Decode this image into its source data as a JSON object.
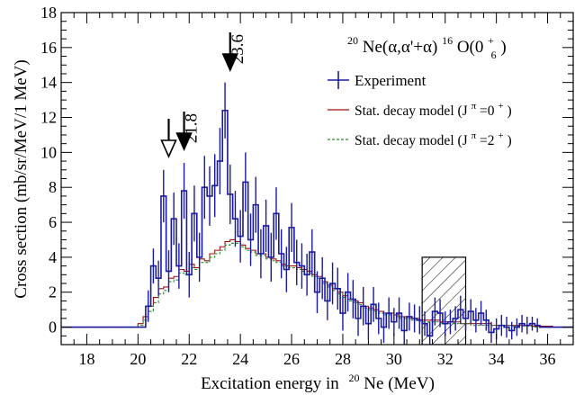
{
  "chart_data": {
    "type": "step",
    "title": "²⁰Ne(α,α'+α)¹⁶O(0⁺₆)",
    "title_parts": {
      "mass_ne": "20",
      "reaction": "Ne(α,α'+α)",
      "mass_o": "16",
      "product": "O(0",
      "sub": "6",
      "sup": "+",
      "close": ")"
    },
    "xlabel": {
      "prefix": "Excitation energy in",
      "mass": "20",
      "suffix": "Ne (MeV)"
    },
    "ylabel": "Cross section (mb/sr/MeV/1 MeV)",
    "xlim": [
      17,
      37
    ],
    "ylim": [
      -1,
      18
    ],
    "xticks": [
      18,
      20,
      22,
      24,
      26,
      28,
      30,
      32,
      34,
      36
    ],
    "yticks": [
      0,
      2,
      4,
      6,
      8,
      10,
      12,
      14,
      16,
      18
    ],
    "grid": false,
    "legend_position": "top-right",
    "legend": [
      {
        "label": "Experiment",
        "style": "errorbar",
        "color": "#1a1aa0"
      },
      {
        "label": "Stat. decay model (J",
        "sup": "π",
        "tail": "=0",
        "tail_sup": "+",
        "end": ")",
        "style": "solid",
        "color": "#a01010"
      },
      {
        "label": "Stat. decay model (J",
        "sup": "π",
        "tail": "=2",
        "tail_sup": "+",
        "end": ")",
        "style": "dashed",
        "color": "#2a8a2a"
      }
    ],
    "annotations": [
      {
        "text": "23.6",
        "x": 23.6,
        "arrow": "filled"
      },
      {
        "text": "21.8",
        "x": 21.8,
        "arrow": "filled"
      },
      {
        "text": "",
        "x": 21.2,
        "arrow": "open"
      }
    ],
    "excluded_region": {
      "x": [
        31.1,
        32.8
      ],
      "y": [
        -1,
        4
      ]
    },
    "series": [
      {
        "name": "Experiment",
        "color": "#1a1aa0",
        "bin_width": 0.2,
        "x": [
          20.4,
          20.6,
          20.8,
          21.0,
          21.2,
          21.4,
          21.6,
          21.8,
          22.0,
          22.2,
          22.4,
          22.6,
          22.8,
          23.0,
          23.2,
          23.4,
          23.6,
          23.8,
          24.0,
          24.2,
          24.4,
          24.6,
          24.8,
          25.0,
          25.2,
          25.4,
          25.6,
          25.8,
          26.0,
          26.2,
          26.4,
          26.6,
          26.8,
          27.0,
          27.2,
          27.4,
          27.6,
          27.8,
          28.0,
          28.2,
          28.4,
          28.6,
          28.8,
          29.0,
          29.2,
          29.4,
          29.6,
          29.8,
          30.0,
          30.2,
          30.4,
          30.6,
          30.8,
          31.0,
          31.2,
          31.4,
          31.6,
          31.8,
          32.0,
          32.2,
          32.4,
          32.6,
          32.8,
          33.0,
          33.2,
          33.4,
          33.6,
          33.8,
          34.0,
          34.2,
          34.4,
          34.6,
          34.8,
          35.0,
          35.2,
          35.4,
          35.6
        ],
        "y": [
          1.2,
          3.5,
          2.8,
          7.5,
          3.2,
          6.2,
          3.5,
          7.8,
          3.0,
          6.5,
          4.0,
          8.0,
          7.5,
          8.1,
          9.5,
          12.4,
          7.6,
          6.2,
          5.2,
          8.3,
          5.0,
          7.0,
          4.2,
          5.8,
          4.0,
          6.5,
          4.2,
          3.3,
          5.7,
          3.7,
          3.5,
          3.0,
          4.3,
          2.0,
          2.8,
          1.5,
          2.5,
          2.2,
          0.8,
          2.0,
          1.6,
          0.5,
          1.2,
          0.2,
          1.3,
          0.5,
          0.0,
          0.8,
          0.3,
          0.8,
          -0.2,
          0.6,
          0.5,
          0.4,
          0.2,
          -0.5,
          0.9,
          0.8,
          0.2,
          0.3,
          0.5,
          1.0,
          0.5,
          0.9,
          0.4,
          0.8,
          0.4,
          -0.3,
          -0.1,
          0.1,
          0.0,
          -0.2,
          0.0,
          0.2,
          0.1,
          0.2,
          0.1
        ],
        "err": [
          0.9,
          1.0,
          1.0,
          1.5,
          1.2,
          1.5,
          1.3,
          1.6,
          1.3,
          1.6,
          1.4,
          1.8,
          1.7,
          1.8,
          1.9,
          1.6,
          1.7,
          1.6,
          1.5,
          1.7,
          1.5,
          1.6,
          1.4,
          1.5,
          1.4,
          1.5,
          1.4,
          1.3,
          1.4,
          1.3,
          1.3,
          1.2,
          1.3,
          1.2,
          1.2,
          1.1,
          1.2,
          1.2,
          1.0,
          1.1,
          1.1,
          1.0,
          1.1,
          0.9,
          1.0,
          0.9,
          0.9,
          0.9,
          0.8,
          0.9,
          0.8,
          0.8,
          0.8,
          0.8,
          0.7,
          0.8,
          0.8,
          0.8,
          0.7,
          0.7,
          0.7,
          0.8,
          0.7,
          0.7,
          0.7,
          0.7,
          0.6,
          0.6,
          0.6,
          0.6,
          0.6,
          0.5,
          0.5,
          0.5,
          0.5,
          0.4,
          0.4
        ]
      },
      {
        "name": "Stat. decay model (Jπ=0+)",
        "color": "#a01010",
        "style": "solid",
        "x": [
          17.0,
          20.0,
          20.2,
          20.4,
          20.6,
          20.8,
          21.0,
          21.2,
          21.4,
          21.6,
          21.8,
          22.0,
          22.2,
          22.4,
          22.6,
          22.8,
          23.0,
          23.2,
          23.4,
          23.6,
          23.8,
          24.0,
          24.2,
          24.4,
          24.6,
          24.8,
          25.0,
          25.2,
          25.4,
          25.6,
          25.8,
          26.0,
          26.2,
          26.4,
          26.6,
          26.8,
          27.0,
          27.2,
          27.4,
          27.6,
          27.8,
          28.0,
          28.2,
          28.4,
          28.6,
          28.8,
          29.0,
          29.2,
          29.4,
          29.6,
          29.8,
          30.0,
          30.2,
          30.4,
          30.6,
          30.8,
          31.0,
          31.4,
          31.8,
          32.2,
          32.6,
          33.0,
          33.4,
          33.8,
          34.2,
          34.6,
          35.0,
          35.4,
          35.8,
          36.2,
          36.6,
          37.0
        ],
        "y": [
          0.0,
          0.2,
          0.6,
          1.2,
          1.7,
          2.2,
          2.3,
          2.8,
          2.9,
          3.3,
          3.2,
          3.6,
          3.4,
          3.9,
          3.8,
          4.2,
          4.4,
          4.6,
          4.9,
          5.0,
          4.9,
          4.7,
          4.5,
          4.4,
          4.2,
          4.2,
          4.0,
          3.9,
          3.8,
          3.6,
          3.5,
          3.5,
          3.4,
          3.3,
          3.2,
          3.0,
          2.9,
          2.6,
          2.4,
          2.2,
          2.0,
          1.8,
          1.6,
          1.5,
          1.4,
          1.2,
          1.1,
          1.0,
          0.9,
          0.8,
          0.8,
          0.7,
          0.6,
          0.6,
          0.5,
          0.5,
          0.4,
          0.4,
          0.3,
          0.3,
          0.2,
          0.2,
          0.2,
          0.1,
          0.1,
          0.1,
          0.1,
          0.05,
          0.05,
          0.0,
          0.0,
          0.0
        ]
      },
      {
        "name": "Stat. decay model (Jπ=2+)",
        "color": "#2a8a2a",
        "style": "dashed",
        "x": [
          17.0,
          20.0,
          20.2,
          20.4,
          20.6,
          20.8,
          21.0,
          21.2,
          21.4,
          21.6,
          21.8,
          22.0,
          22.2,
          22.4,
          22.6,
          22.8,
          23.0,
          23.2,
          23.4,
          23.6,
          23.8,
          24.0,
          24.2,
          24.4,
          24.6,
          24.8,
          25.0,
          25.2,
          25.4,
          25.6,
          25.8,
          26.0,
          26.2,
          26.4,
          26.6,
          26.8,
          27.0,
          27.2,
          27.4,
          27.6,
          27.8,
          28.0,
          28.2,
          28.4,
          28.6,
          28.8,
          29.0,
          29.2,
          29.4,
          29.6,
          29.8,
          30.0,
          30.2,
          30.4,
          30.6,
          30.8,
          31.0,
          31.4,
          31.8,
          32.2,
          32.6,
          33.0,
          33.4,
          33.8,
          34.2,
          34.6,
          35.0,
          35.4,
          35.8,
          36.2,
          36.6,
          37.0
        ],
        "y": [
          0.0,
          0.1,
          0.4,
          0.9,
          1.4,
          1.9,
          2.1,
          2.6,
          2.7,
          3.1,
          3.0,
          3.4,
          3.3,
          3.7,
          3.7,
          4.0,
          4.2,
          4.4,
          4.7,
          4.8,
          4.8,
          4.6,
          4.4,
          4.3,
          4.1,
          4.1,
          3.9,
          3.8,
          3.7,
          3.5,
          3.4,
          3.4,
          3.3,
          3.2,
          3.1,
          2.9,
          2.8,
          2.5,
          2.3,
          2.1,
          1.9,
          1.7,
          1.5,
          1.4,
          1.3,
          1.1,
          1.0,
          0.9,
          0.8,
          0.7,
          0.7,
          0.6,
          0.5,
          0.5,
          0.4,
          0.4,
          0.3,
          0.3,
          0.2,
          0.2,
          0.2,
          0.1,
          0.1,
          0.1,
          0.1,
          0.05,
          0.05,
          0.0,
          0.0,
          0.0,
          0.0,
          0.0
        ]
      }
    ]
  }
}
